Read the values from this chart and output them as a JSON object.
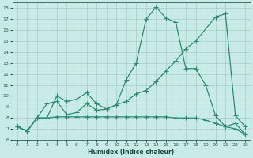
{
  "line1_x": [
    0,
    1,
    2,
    3,
    4,
    5,
    6,
    7,
    8,
    9,
    10,
    11,
    12,
    13,
    14,
    15,
    16,
    17,
    18,
    19,
    20,
    21,
    22,
    23
  ],
  "line1_y": [
    7.2,
    6.8,
    8.0,
    8.0,
    10.0,
    9.5,
    9.7,
    10.3,
    9.3,
    8.8,
    9.2,
    11.5,
    13.0,
    17.0,
    18.1,
    17.1,
    16.7,
    12.5,
    12.5,
    11.0,
    8.2,
    7.2,
    7.5,
    6.5
  ],
  "line2_x": [
    0,
    1,
    2,
    3,
    4,
    5,
    6,
    7,
    8,
    9,
    10,
    11,
    12,
    13,
    14,
    15,
    16,
    17,
    18,
    20,
    21,
    22,
    23
  ],
  "line2_y": [
    7.2,
    6.8,
    8.0,
    9.3,
    9.5,
    8.3,
    8.5,
    9.3,
    8.7,
    8.8,
    9.2,
    9.5,
    10.2,
    10.5,
    11.3,
    12.3,
    13.2,
    14.3,
    15.0,
    17.2,
    17.5,
    8.2,
    7.2
  ],
  "line3_x": [
    0,
    1,
    2,
    3,
    4,
    5,
    6,
    7,
    8,
    9,
    10,
    11,
    12,
    13,
    14,
    15,
    16,
    17,
    18,
    19,
    20,
    21,
    22,
    23
  ],
  "line3_y": [
    7.2,
    6.8,
    8.0,
    8.0,
    8.1,
    8.1,
    8.1,
    8.1,
    8.1,
    8.1,
    8.1,
    8.1,
    8.1,
    8.1,
    8.1,
    8.1,
    8.0,
    8.0,
    8.0,
    7.8,
    7.5,
    7.2,
    7.0,
    6.5
  ],
  "line_color": "#2e8b70",
  "bg_color": "#c8eae8",
  "grid_color": "#a8cdc8",
  "xlabel": "Humidex (Indice chaleur)",
  "ylim": [
    6,
    18.5
  ],
  "xlim": [
    -0.5,
    23.5
  ],
  "yticks": [
    6,
    7,
    8,
    9,
    10,
    11,
    12,
    13,
    14,
    15,
    16,
    17,
    18
  ],
  "xticks": [
    0,
    1,
    2,
    3,
    4,
    5,
    6,
    7,
    8,
    9,
    10,
    11,
    12,
    13,
    14,
    15,
    16,
    17,
    18,
    19,
    20,
    21,
    22,
    23
  ]
}
